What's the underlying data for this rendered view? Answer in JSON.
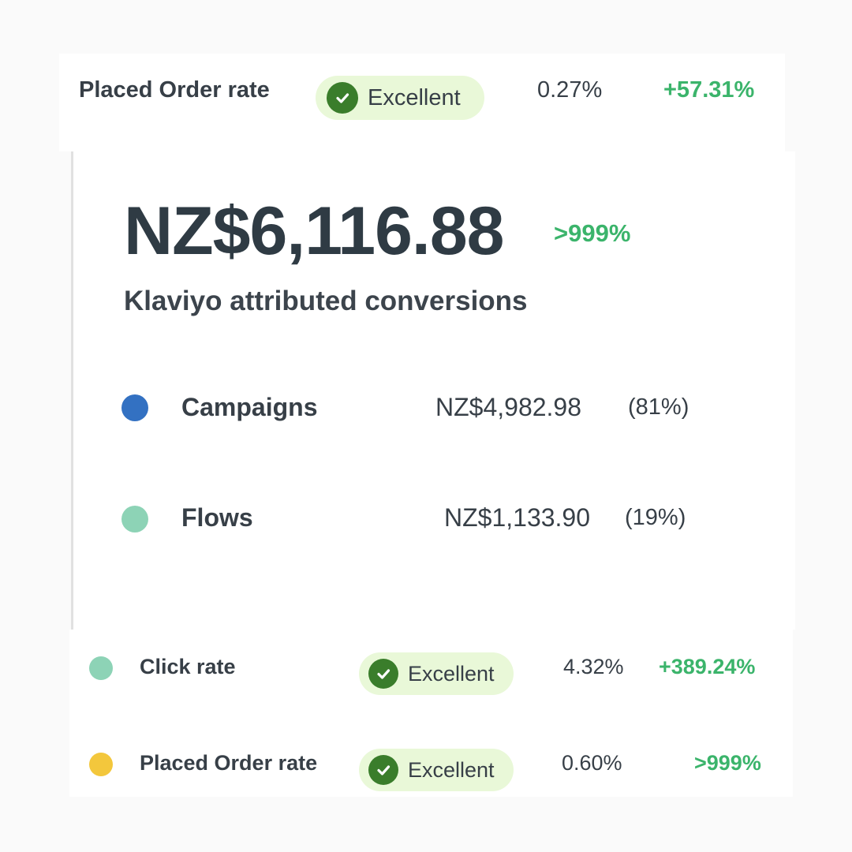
{
  "top_row": {
    "label": "Placed Order rate",
    "badge": "Excellent",
    "value": "0.27%",
    "change": "+57.31%"
  },
  "summary": {
    "amount": "NZ$6,116.88",
    "change": ">999%",
    "caption": "Klaviyo attributed conversions"
  },
  "breakdown": [
    {
      "label": "Campaigns",
      "amount": "NZ$4,982.98",
      "share": "(81%)",
      "color": "#3371c2"
    },
    {
      "label": "Flows",
      "amount": "NZ$1,133.90",
      "share": "(19%)",
      "color": "#8dd3b6"
    }
  ],
  "bottom_rows": [
    {
      "label": "Click rate",
      "badge": "Excellent",
      "value": "4.32%",
      "change": "+389.24%",
      "color": "#8dd3b6"
    },
    {
      "label": "Placed Order rate",
      "badge": "Excellent",
      "value": "0.60%",
      "change": ">999%",
      "color": "#f3c73c"
    }
  ],
  "icons": {
    "badge_icon": "check-circle-icon",
    "legend_icon": "dot-icon"
  }
}
